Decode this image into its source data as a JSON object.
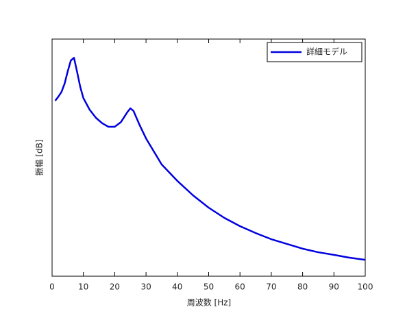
{
  "chart_data": {
    "type": "line",
    "xlabel": "周波数 [Hz]",
    "ylabel": "振幅 [dB]",
    "x": [
      1,
      2,
      3,
      4,
      5,
      6,
      7,
      8,
      9,
      10,
      12,
      14,
      16,
      18,
      20,
      22,
      24,
      25,
      26,
      28,
      30,
      35,
      40,
      45,
      50,
      55,
      60,
      65,
      70,
      75,
      80,
      85,
      90,
      95,
      100
    ],
    "series": [
      {
        "name": "詳細モデル",
        "color": "#0000e0",
        "values": [
          74.0,
          75.7,
          77.7,
          81.2,
          86.4,
          91.0,
          92.1,
          86.1,
          79.8,
          75.1,
          70.2,
          66.8,
          64.5,
          63.0,
          63.0,
          65.0,
          69.1,
          70.8,
          69.7,
          63.6,
          58.1,
          47.1,
          40.2,
          34.1,
          28.9,
          24.6,
          21.1,
          18.2,
          15.6,
          13.6,
          11.6,
          10.1,
          9.0,
          7.8,
          6.9
        ]
      }
    ],
    "xlim": [
      0,
      100
    ],
    "xticks": [
      0,
      10,
      20,
      30,
      40,
      50,
      60,
      70,
      80,
      90,
      100
    ],
    "ylim": [
      0,
      100
    ],
    "legend": "upper right"
  }
}
